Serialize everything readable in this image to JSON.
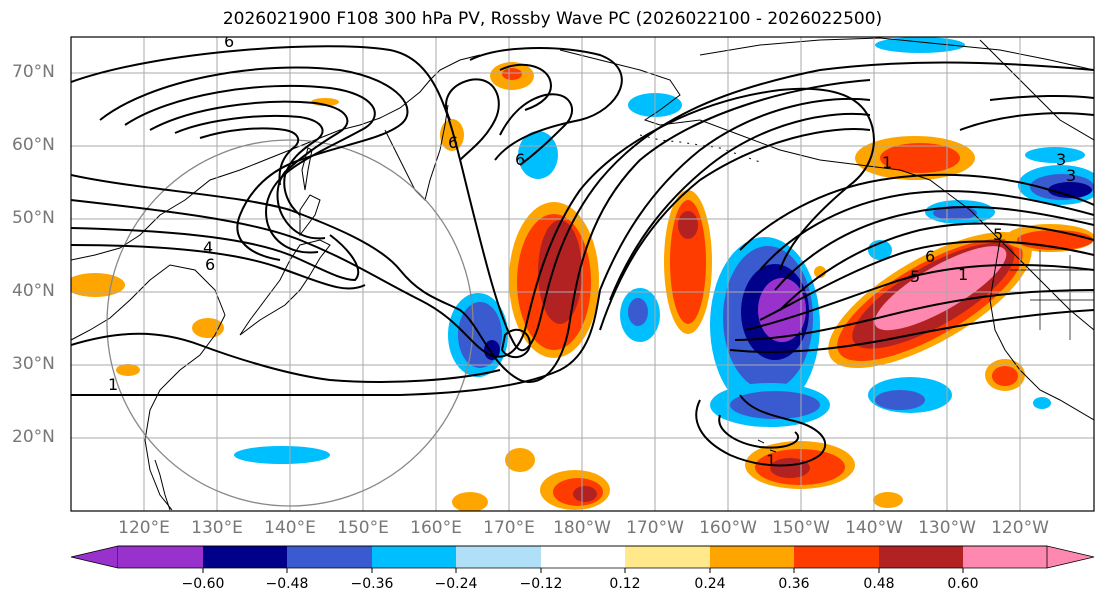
{
  "title": "2026021900 F108 300 hPa PV, Rossby Wave PC (2026022100 - 2026022500)",
  "lat_labels": [
    "70°N",
    "60°N",
    "50°N",
    "40°N",
    "30°N",
    "20°N"
  ],
  "lon_labels": [
    "120°E",
    "130°E",
    "140°E",
    "150°E",
    "160°E",
    "170°E",
    "180°W",
    "170°W",
    "160°W",
    "150°W",
    "140°W",
    "130°W",
    "120°W"
  ],
  "contour_labels": [
    "6",
    "6",
    "4",
    "1",
    "6",
    "6",
    "1",
    "1",
    "5",
    "6",
    "1",
    "3",
    "3",
    "5"
  ],
  "colorbar": {
    "tick_labels": [
      "−0.60",
      "−0.48",
      "−0.36",
      "−0.24",
      "−0.12",
      "0.12",
      "0.24",
      "0.36",
      "0.48",
      "0.60"
    ],
    "colors": [
      "#9932cc",
      "#00008b",
      "#3a5bd0",
      "#00bfff",
      "#b0e0f8",
      "#ffffff",
      "#ffe98a",
      "#ffa500",
      "#ff3c00",
      "#b22222",
      "#ff88b0"
    ]
  }
}
